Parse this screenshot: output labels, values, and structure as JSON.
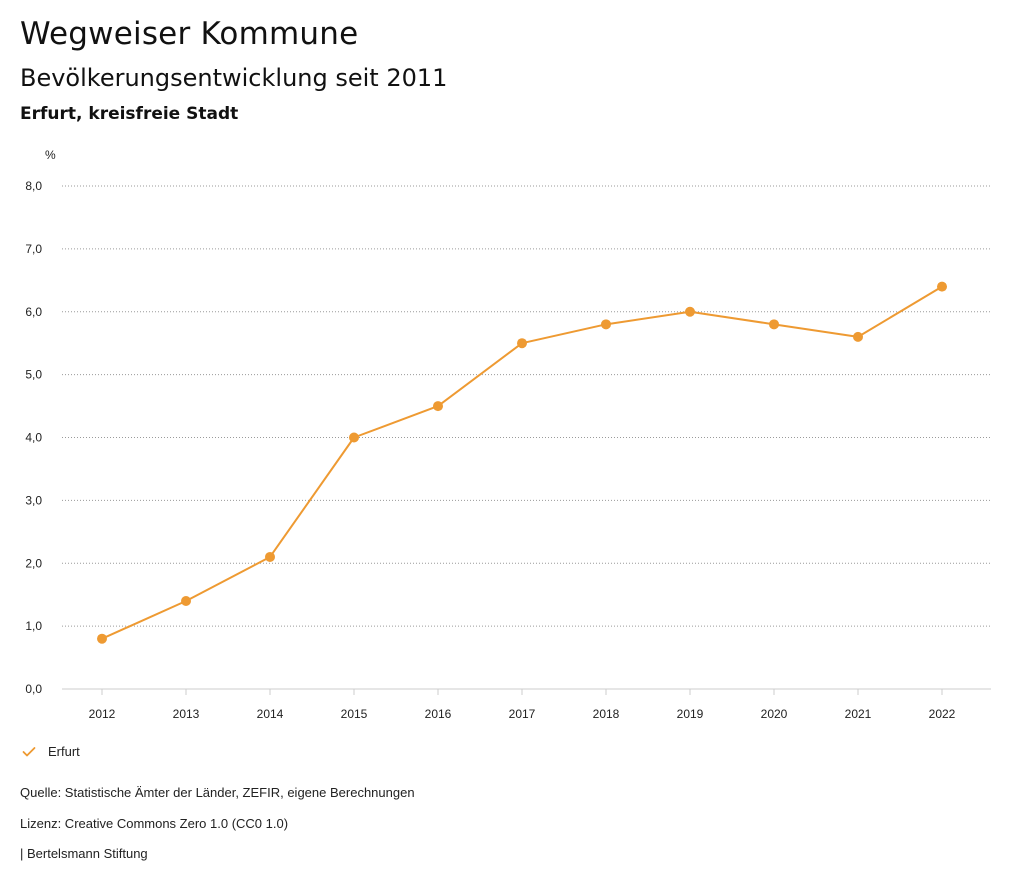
{
  "header": {
    "title": "Wegweiser Kommune",
    "subtitle": "Bevölkerungsentwicklung seit 2011",
    "region": "Erfurt, kreisfreie Stadt"
  },
  "chart_data": {
    "type": "line",
    "title": "Bevölkerungsentwicklung seit 2011",
    "xlabel": "",
    "ylabel": "%",
    "categories": [
      "2012",
      "2013",
      "2014",
      "2015",
      "2016",
      "2017",
      "2018",
      "2019",
      "2020",
      "2021",
      "2022"
    ],
    "series": [
      {
        "name": "Erfurt",
        "values": [
          0.8,
          1.4,
          2.1,
          4.0,
          4.5,
          5.5,
          5.8,
          6.0,
          5.8,
          5.6,
          6.4
        ]
      }
    ],
    "ylim": [
      0,
      8
    ],
    "yticks": [
      0,
      1,
      2,
      3,
      4,
      5,
      6,
      7,
      8
    ],
    "ytick_labels": [
      "0,0",
      "1,0",
      "2,0",
      "3,0",
      "4,0",
      "5,0",
      "6,0",
      "7,0",
      "8,0"
    ],
    "grid": true,
    "legend_position": "bottom-left",
    "colors": {
      "series": "#EE9A32",
      "grid": "#9a9a9a",
      "axis": "#cccccc"
    }
  },
  "legend": {
    "label": "Erfurt",
    "icon": "checkmark-icon"
  },
  "footer": {
    "source": "Quelle: Statistische Ämter der Länder, ZEFIR, eigene Berechnungen",
    "license": "Lizenz: Creative Commons Zero 1.0 (CC0 1.0)",
    "publisher": "| Bertelsmann Stiftung"
  }
}
